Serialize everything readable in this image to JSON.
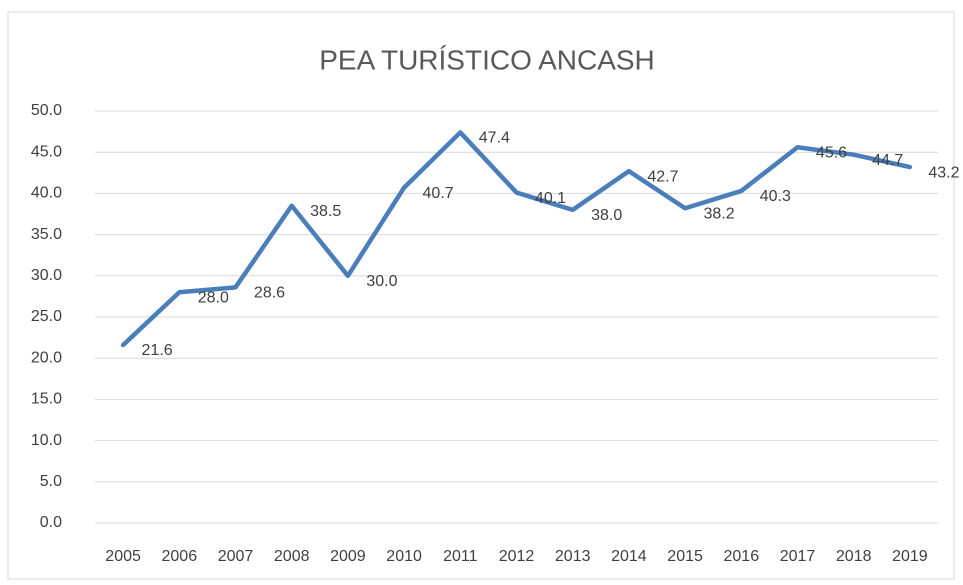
{
  "chart_data": {
    "type": "line",
    "title": "PEA TURÍSTICO ANCASH",
    "categories": [
      "2005",
      "2006",
      "2007",
      "2008",
      "2009",
      "2010",
      "2011",
      "2012",
      "2013",
      "2014",
      "2015",
      "2016",
      "2017",
      "2018",
      "2019"
    ],
    "series": [
      {
        "name": "PEA TURÍSTICO ANCASH",
        "color": "#4a7ebb",
        "values": [
          21.6,
          28.0,
          28.6,
          38.5,
          30.0,
          40.7,
          47.4,
          40.1,
          38.0,
          42.7,
          38.2,
          40.3,
          45.6,
          44.7,
          43.2
        ],
        "value_labels": [
          "21.6",
          "28.0",
          "28.6",
          "38.5",
          "30.0",
          "40.7",
          "47.4",
          "40.1",
          "38.0",
          "42.7",
          "38.2",
          "40.3",
          "45.6",
          "44.7",
          "43.2"
        ]
      }
    ],
    "ylim": [
      0,
      50
    ],
    "yticks": [
      {
        "value": 0,
        "label": "0.0"
      },
      {
        "value": 5,
        "label": "5.0"
      },
      {
        "value": 10,
        "label": "10.0"
      },
      {
        "value": 15,
        "label": "15.0"
      },
      {
        "value": 20,
        "label": "20.0"
      },
      {
        "value": 25,
        "label": "25.0"
      },
      {
        "value": 30,
        "label": "30.0"
      },
      {
        "value": 35,
        "label": "35.0"
      },
      {
        "value": 40,
        "label": "40.0"
      },
      {
        "value": 45,
        "label": "45.0"
      },
      {
        "value": 50,
        "label": "50.0"
      }
    ],
    "grid": true
  }
}
